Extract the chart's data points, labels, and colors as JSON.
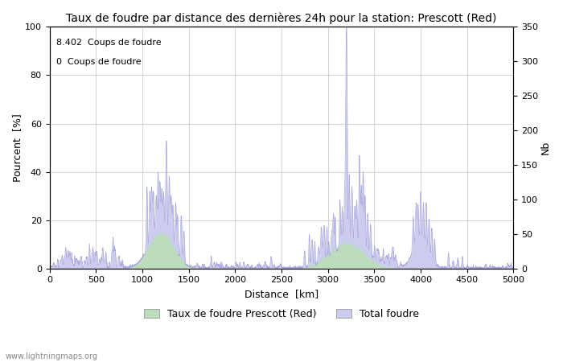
{
  "title": "Taux de foudre par distance des dernières 24h pour la station: Prescott (Red)",
  "xlabel": "Distance  [km]",
  "ylabel_left": "Pourcent  [%]",
  "ylabel_right": "Nb",
  "annotation_line1": "8.402  Coups de foudre",
  "annotation_line2": "0  Coups de foudre",
  "legend_label1": "Taux de foudre Prescott (Red)",
  "legend_label2": "Total foudre",
  "footer": "www.lightningmaps.org",
  "xlim": [
    0,
    5000
  ],
  "ylim_left": [
    0,
    100
  ],
  "ylim_right": [
    0,
    350
  ],
  "xticks": [
    0,
    500,
    1000,
    1500,
    2000,
    2500,
    3000,
    3500,
    4000,
    4500,
    5000
  ],
  "yticks_left": [
    0,
    20,
    40,
    60,
    80,
    100
  ],
  "yticks_right": [
    0,
    50,
    100,
    150,
    200,
    250,
    300,
    350
  ],
  "line_color": "#aaaadd",
  "fill_total_color": "#ccccee",
  "fill_station_color": "#bbddbb",
  "background_color": "#ffffff",
  "grid_color": "#cccccc",
  "title_fontsize": 10,
  "axis_fontsize": 9,
  "tick_fontsize": 8,
  "annotation_fontsize": 8
}
